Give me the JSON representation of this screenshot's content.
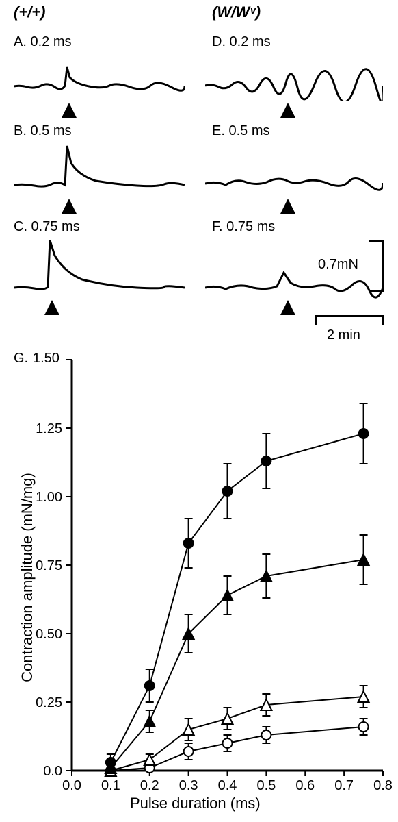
{
  "columns": {
    "left_header": "(+/+)",
    "right_header": "(W/Wᵛ)"
  },
  "panels": {
    "A": {
      "label": "A. 0.2 ms"
    },
    "B": {
      "label": "B. 0.5 ms"
    },
    "C": {
      "label": "C. 0.75 ms"
    },
    "D": {
      "label": "D. 0.2 ms"
    },
    "E": {
      "label": "E. 0.5 ms"
    },
    "F": {
      "label": "F. 0.75 ms"
    },
    "G": {
      "label": "G."
    }
  },
  "scalebars": {
    "vertical_label": "0.7mN",
    "horizontal_label": "2 min"
  },
  "chart": {
    "type": "line",
    "x_label": "Pulse duration (ms)",
    "y_label": "Contraction amplitude (mN/mg)",
    "xlim": [
      0.0,
      0.8
    ],
    "ylim": [
      0.0,
      1.5
    ],
    "xticks": [
      0.0,
      0.1,
      0.2,
      0.3,
      0.4,
      0.5,
      0.6,
      0.7,
      0.8
    ],
    "yticks": [
      0.0,
      0.25,
      0.5,
      0.75,
      1.0,
      1.25,
      1.5
    ],
    "xtick_labels": [
      "0.0",
      "0.1",
      "0.2",
      "0.3",
      "0.4",
      "0.5",
      "0.6",
      "0.7",
      "0.8"
    ],
    "ytick_labels": [
      "0.0",
      "0.25",
      "0.50",
      "0.75",
      "1.00",
      "1.25",
      "1.50"
    ],
    "ytick_label_top": "1.50",
    "background_color": "#ffffff",
    "axis_color": "#000000",
    "series": {
      "filled_circle": {
        "marker": "circle",
        "filled": true,
        "color": "#000000",
        "x": [
          0.1,
          0.2,
          0.3,
          0.4,
          0.5,
          0.75
        ],
        "y": [
          0.03,
          0.31,
          0.83,
          1.02,
          1.13,
          1.23
        ],
        "err": [
          0.03,
          0.06,
          0.09,
          0.1,
          0.1,
          0.11
        ]
      },
      "filled_triangle": {
        "marker": "triangle",
        "filled": true,
        "color": "#000000",
        "x": [
          0.1,
          0.2,
          0.3,
          0.4,
          0.5,
          0.75
        ],
        "y": [
          0.01,
          0.18,
          0.5,
          0.64,
          0.71,
          0.77
        ],
        "err": [
          0.02,
          0.04,
          0.07,
          0.07,
          0.08,
          0.09
        ]
      },
      "open_triangle": {
        "marker": "triangle",
        "filled": false,
        "color": "#000000",
        "x": [
          0.1,
          0.2,
          0.3,
          0.4,
          0.5,
          0.75
        ],
        "y": [
          0.0,
          0.04,
          0.15,
          0.19,
          0.24,
          0.27
        ],
        "err": [
          0.01,
          0.02,
          0.04,
          0.04,
          0.04,
          0.04
        ]
      },
      "open_circle": {
        "marker": "circle",
        "filled": false,
        "color": "#000000",
        "x": [
          0.1,
          0.2,
          0.3,
          0.4,
          0.5,
          0.75
        ],
        "y": [
          0.0,
          0.01,
          0.07,
          0.1,
          0.13,
          0.16
        ],
        "err": [
          0.01,
          0.01,
          0.03,
          0.03,
          0.03,
          0.03
        ]
      }
    },
    "marker_size": 7,
    "line_width": 2,
    "error_cap": 6,
    "label_fontsize": 22,
    "tick_fontsize": 20
  }
}
